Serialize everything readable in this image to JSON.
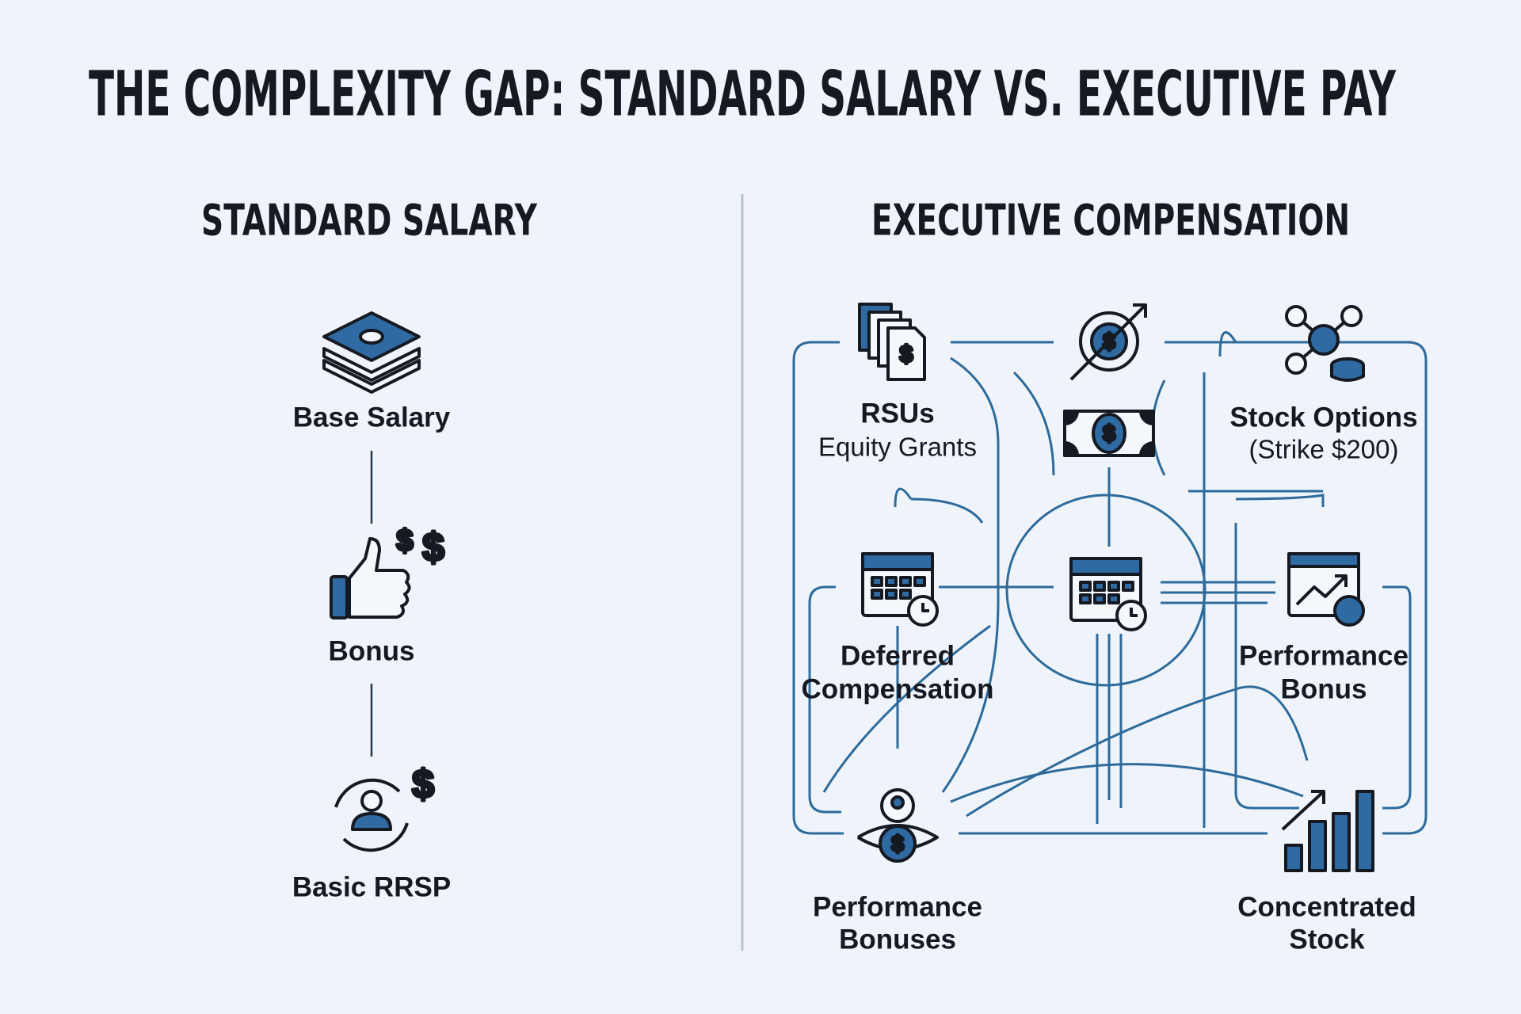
{
  "title": "THE COMPLEXITY GAP: STANDARD SALARY VS. EXECUTIVE PAY",
  "left": {
    "heading": "STANDARD SALARY",
    "items": [
      {
        "label": "Base Salary"
      },
      {
        "label": "Bonus"
      },
      {
        "label": "Basic RRSP"
      }
    ]
  },
  "right": {
    "heading": "EXECUTIVE COMPENSATION",
    "nodes": [
      {
        "lines": [
          "RSUs"
        ],
        "sublabel": "Equity Grants"
      },
      {
        "lines": [
          "Stock Options"
        ],
        "sublabel": "(Strike $200)"
      },
      {
        "lines": [
          "Deferred",
          "Compensation"
        ]
      },
      {
        "lines": [
          "Performance",
          "Bonus"
        ]
      },
      {
        "lines": [
          "Performance",
          "Bonuses"
        ]
      },
      {
        "lines": [
          "Concentrated",
          "Stock"
        ]
      }
    ]
  }
}
